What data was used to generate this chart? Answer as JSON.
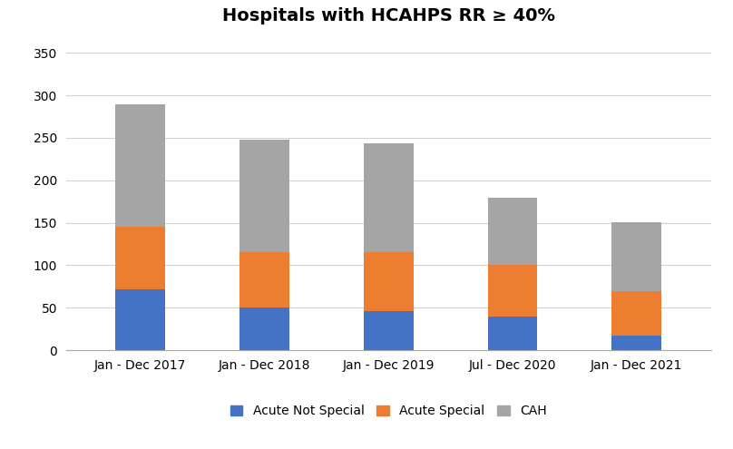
{
  "categories": [
    "Jan - Dec 2017",
    "Jan - Dec 2018",
    "Jan - Dec 2019",
    "Jul - Dec 2020",
    "Jan - Dec 2021"
  ],
  "acute_not_special": [
    72,
    50,
    46,
    40,
    17
  ],
  "acute_special": [
    73,
    65,
    69,
    60,
    52
  ],
  "cah": [
    144,
    133,
    129,
    80,
    82
  ],
  "color_acute_not_special": "#4472C4",
  "color_acute_special": "#ED7D31",
  "color_cah": "#A5A5A5",
  "title": "Hospitals with HCAHPS RR ≥ 40%",
  "ylim": [
    0,
    370
  ],
  "yticks": [
    0,
    50,
    100,
    150,
    200,
    250,
    300,
    350
  ],
  "legend_labels": [
    "Acute Not Special",
    "Acute Special",
    "CAH"
  ],
  "background_color": "#FFFFFF",
  "title_fontsize": 14,
  "tick_fontsize": 10,
  "legend_fontsize": 10,
  "bar_width": 0.4
}
